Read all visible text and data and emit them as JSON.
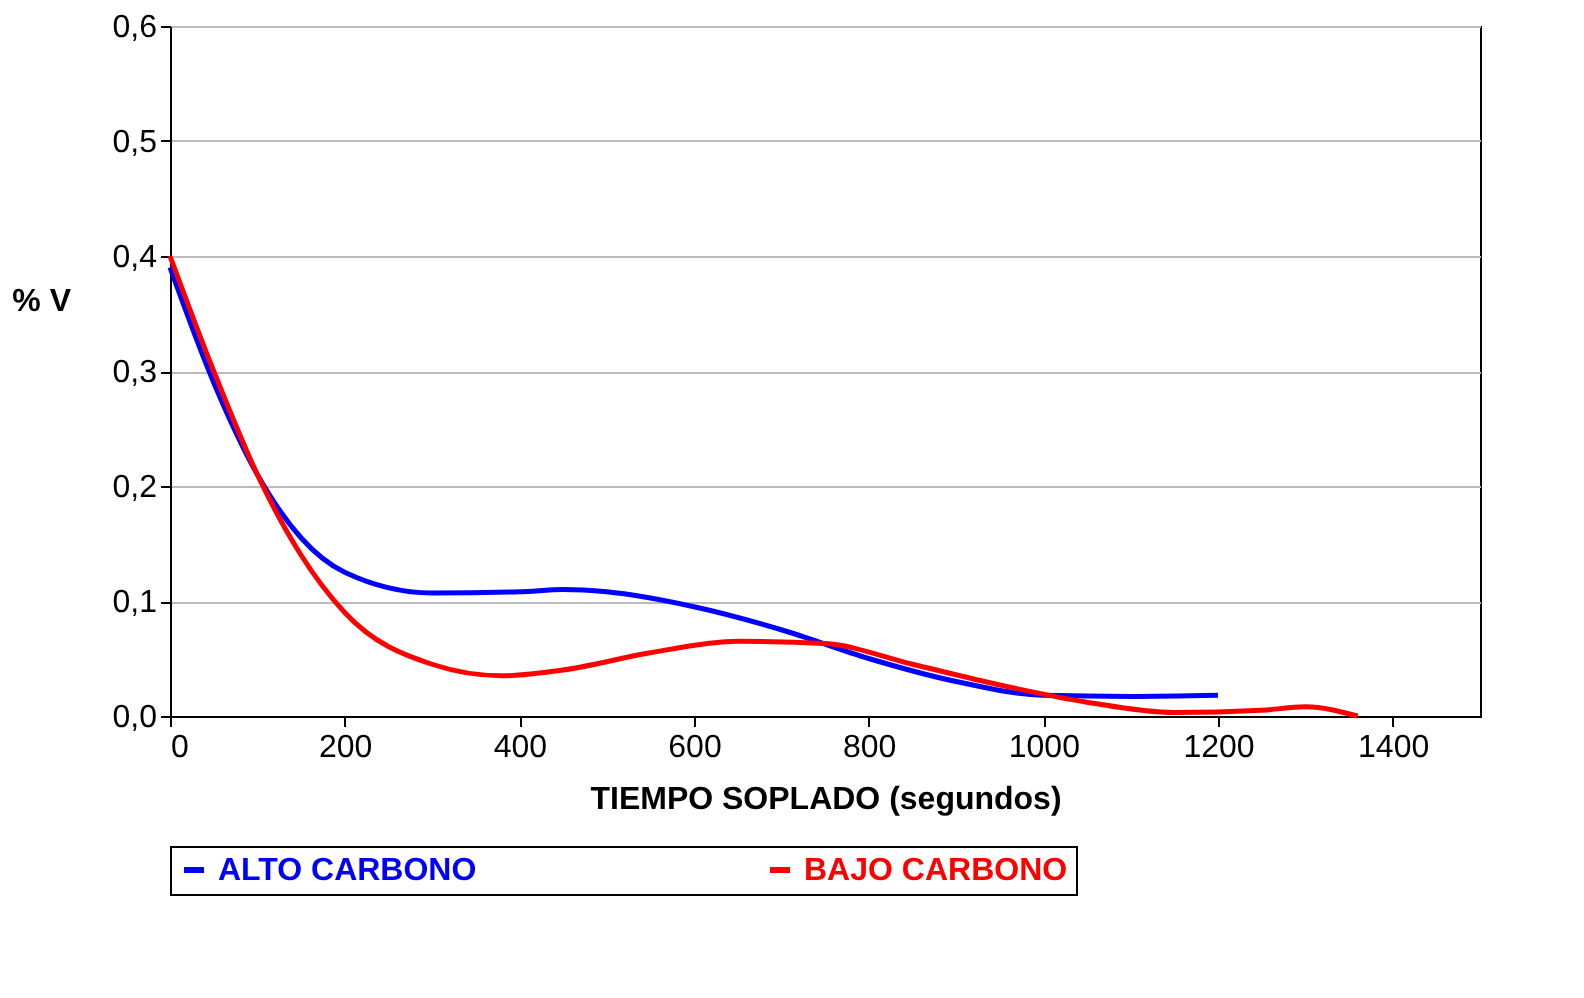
{
  "chart_data": {
    "type": "line",
    "xlabel": "TIEMPO SOPLADO (segundos)",
    "ylabel": "% V",
    "xlim": [
      0,
      1500
    ],
    "xticks": [
      0,
      200,
      400,
      600,
      800,
      1000,
      1200,
      1400
    ],
    "ylim": [
      0,
      0.6
    ],
    "yticks": [
      {
        "value": 0,
        "label": "0,0"
      },
      {
        "value": 0.1,
        "label": "0,1"
      },
      {
        "value": 0.2,
        "label": "0,2"
      },
      {
        "value": 0.3,
        "label": "0,3"
      },
      {
        "value": 0.4,
        "label": "0,4"
      },
      {
        "value": 0.5,
        "label": "0,5"
      },
      {
        "value": 0.6,
        "label": "0,6"
      }
    ],
    "grid": "y",
    "legend": "bottom",
    "marker": "none",
    "line_style": "solid",
    "series": [
      {
        "name": "ALTO CARBONO",
        "color": "#0000ff",
        "x": [
          0,
          50,
          100,
          150,
          200,
          300,
          400,
          450,
          500,
          600,
          700,
          800,
          900,
          1000,
          1100,
          1200
        ],
        "values": [
          0.39,
          0.29,
          0.21,
          0.155,
          0.125,
          0.107,
          0.108,
          0.11,
          0.108,
          0.095,
          0.075,
          0.05,
          0.03,
          0.018,
          0.017,
          0.018
        ]
      },
      {
        "name": "BAJO CARBONO",
        "color": "#ff0000",
        "x": [
          0,
          50,
          100,
          150,
          200,
          300,
          380,
          450,
          550,
          650,
          750,
          850,
          950,
          1050,
          1150,
          1250,
          1300,
          1360
        ],
        "values": [
          0.4,
          0.3,
          0.21,
          0.14,
          0.09,
          0.045,
          0.035,
          0.04,
          0.055,
          0.065,
          0.063,
          0.045,
          0.027,
          0.012,
          0.003,
          0.005,
          0.008,
          0.0
        ]
      }
    ]
  }
}
